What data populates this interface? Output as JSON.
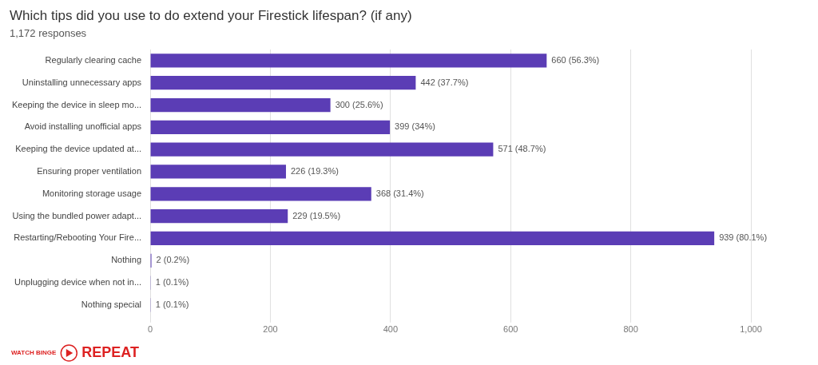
{
  "chart_data": {
    "type": "bar",
    "orientation": "horizontal",
    "title": "Which tips did you use to do extend your Firestick lifespan? (if any)",
    "subtitle": "1,172 responses",
    "categories": [
      "Regularly clearing cache",
      "Uninstalling unnecessary apps",
      "Keeping the device in sleep mo...",
      "Avoid installing unofficial apps",
      "Keeping the device updated at...",
      "Ensuring proper ventilation",
      "Monitoring storage usage",
      "Using the bundled power adapt...",
      "Restarting/Rebooting Your Fire...",
      "Nothing",
      "Unplugging device when not in...",
      "Nothing special"
    ],
    "values": [
      660,
      442,
      300,
      399,
      571,
      226,
      368,
      229,
      939,
      2,
      1,
      1
    ],
    "value_labels": [
      "660 (56.3%)",
      "442 (37.7%)",
      "300 (25.6%)",
      "399 (34%)",
      "571 (48.7%)",
      "226 (19.3%)",
      "368 (31.4%)",
      "229 (19.5%)",
      "939 (80.1%)",
      "2 (0.2%)",
      "1 (0.1%)",
      "1 (0.1%)"
    ],
    "data_labels": true,
    "color": "#5b3db5",
    "xlim": [
      0,
      1000
    ],
    "xticks": [
      0,
      200,
      400,
      600,
      800,
      {
        "value": 1000,
        "label": "1,000"
      }
    ],
    "grid": true,
    "annotations": [
      {
        "text": "WATCH BINGE",
        "color": "#dd2222"
      },
      {
        "text": "REPEAT",
        "color": "#dd2222"
      }
    ]
  }
}
